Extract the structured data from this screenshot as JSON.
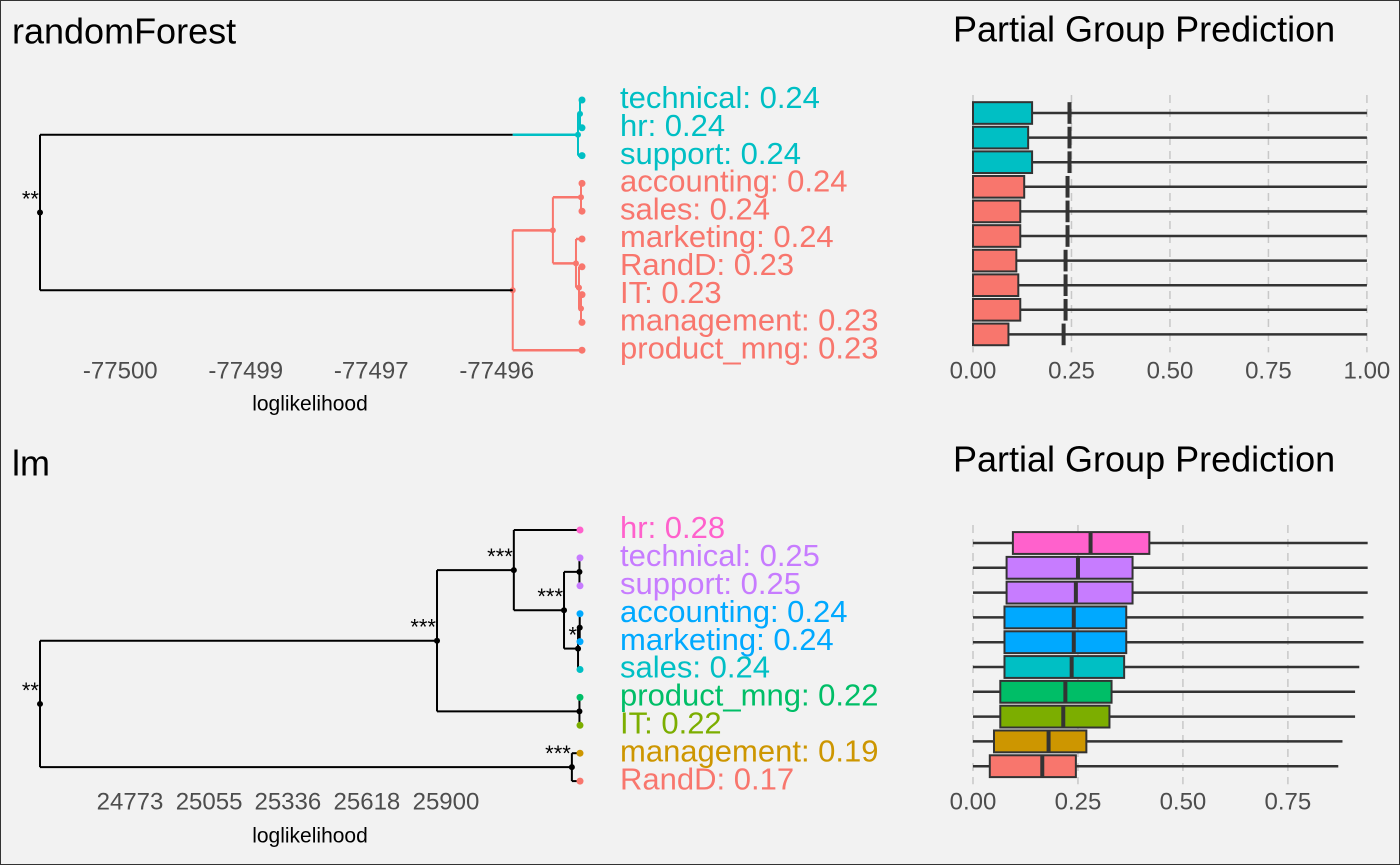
{
  "chart_data": [
    {
      "type": "dendrogram",
      "title": "randomForest",
      "x_label": "loglikelihood",
      "xlim": [
        -77500.7,
        -77495.3
      ],
      "xticks": [
        {
          "value": -77499.9,
          "label": "-77500"
        },
        {
          "value": -77498.65,
          "label": "-77499"
        },
        {
          "value": -77497.4,
          "label": "-77497"
        },
        {
          "value": -77496.15,
          "label": "-77496"
        }
      ],
      "leaf_height": -77495.3,
      "cut": -77495.99,
      "leaves": [
        {
          "label": "technical: 0.24",
          "color": "#00bfc4"
        },
        {
          "label": "hr: 0.24",
          "color": "#00bfc4"
        },
        {
          "label": "support: 0.24",
          "color": "#00bfc4"
        },
        {
          "label": "accounting: 0.24",
          "color": "#f8766d"
        },
        {
          "label": "sales: 0.24",
          "color": "#f8766d"
        },
        {
          "label": "marketing: 0.24",
          "color": "#f8766d"
        },
        {
          "label": "RandD: 0.23",
          "color": "#f8766d"
        },
        {
          "label": "IT: 0.23",
          "color": "#f8766d"
        },
        {
          "label": "management: 0.23",
          "color": "#f8766d"
        },
        {
          "label": "product_mng: 0.23",
          "color": "#f8766d"
        }
      ],
      "nodes": [
        {
          "children": [
            0,
            1
          ],
          "height": -77495.32
        },
        {
          "children": [
            10,
            2
          ],
          "height": -77495.34
        },
        {
          "children": [
            3,
            4
          ],
          "height": -77495.31
        },
        {
          "children": [
            7,
            8
          ],
          "height": -77495.31
        },
        {
          "children": [
            6,
            13
          ],
          "height": -77495.33
        },
        {
          "children": [
            5,
            14
          ],
          "height": -77495.36
        },
        {
          "children": [
            12,
            15
          ],
          "height": -77495.59
        },
        {
          "children": [
            16,
            9
          ],
          "height": -77495.99
        },
        {
          "children": [
            11,
            17
          ],
          "height": -77500.7,
          "label": "**"
        }
      ]
    },
    {
      "type": "box",
      "title": "Partial Group Prediction",
      "xlim": [
        0,
        1.084
      ],
      "xticks": [
        {
          "value": 0,
          "label": "0.00"
        },
        {
          "value": 0.25,
          "label": "0.25"
        },
        {
          "value": 0.5,
          "label": "0.50"
        },
        {
          "value": 0.75,
          "label": "0.75"
        },
        {
          "value": 1,
          "label": "1.00"
        }
      ],
      "grid": true,
      "colors": [
        "#00bfc4",
        "#00bfc4",
        "#00bfc4",
        "#f8766d",
        "#f8766d",
        "#f8766d",
        "#f8766d",
        "#f8766d",
        "#f8766d",
        "#f8766d"
      ],
      "min": [
        0,
        0,
        0,
        0,
        0,
        0,
        0,
        0,
        0,
        0
      ],
      "q1": [
        0,
        0,
        0,
        0,
        0,
        0,
        0,
        0,
        0,
        0
      ],
      "median": [
        0.245,
        0.245,
        0.245,
        0.24,
        0.24,
        0.24,
        0.235,
        0.235,
        0.235,
        0.23
      ],
      "q3": [
        0.15,
        0.14,
        0.15,
        0.13,
        0.12,
        0.12,
        0.11,
        0.115,
        0.12,
        0.09
      ],
      "max": [
        1,
        1,
        1,
        1,
        1,
        1,
        1,
        1,
        1,
        1
      ]
    },
    {
      "type": "dendrogram",
      "title": "lm",
      "x_label": "loglikelihood",
      "xlim": [
        24452,
        26378
      ],
      "xticks": [
        24773,
        25055,
        25336,
        25618,
        25900
      ],
      "leaf_height": 26378,
      "leaves": [
        {
          "label": "hr: 0.28",
          "color": "#ff61cc"
        },
        {
          "label": "technical: 0.25",
          "color": "#c77cff"
        },
        {
          "label": "support: 0.25",
          "color": "#c77cff"
        },
        {
          "label": "accounting: 0.24",
          "color": "#00a9ff"
        },
        {
          "label": "marketing: 0.24",
          "color": "#00a9ff"
        },
        {
          "label": "sales: 0.24",
          "color": "#00bfc4"
        },
        {
          "label": "product_mng: 0.22",
          "color": "#00be67"
        },
        {
          "label": "IT: 0.22",
          "color": "#7cae00"
        },
        {
          "label": "management: 0.19",
          "color": "#cd9600"
        },
        {
          "label": "RandD: 0.17",
          "color": "#f8766d"
        }
      ],
      "nodes": [
        {
          "children": [
            1,
            2
          ],
          "height": 26376
        },
        {
          "children": [
            3,
            4
          ],
          "height": 26377
        },
        {
          "children": [
            11,
            5
          ],
          "height": 26371,
          "label": "*"
        },
        {
          "children": [
            10,
            12
          ],
          "height": 26321,
          "label": "***"
        },
        {
          "children": [
            0,
            13
          ],
          "height": 26142,
          "label": "***"
        },
        {
          "children": [
            6,
            7
          ],
          "height": 26376
        },
        {
          "children": [
            14,
            15
          ],
          "height": 25868,
          "label": "***"
        },
        {
          "children": [
            8,
            9
          ],
          "height": 26349,
          "label": "***"
        },
        {
          "children": [
            16,
            17
          ],
          "height": 24452,
          "label": "**"
        }
      ]
    },
    {
      "type": "box",
      "title": "Partial Group Prediction",
      "xlim": [
        0,
        1.017
      ],
      "xticks": [
        {
          "value": 0,
          "label": "0.00"
        },
        {
          "value": 0.25,
          "label": "0.25"
        },
        {
          "value": 0.5,
          "label": "0.50"
        },
        {
          "value": 0.75,
          "label": "0.75"
        }
      ],
      "grid": true,
      "colors": [
        "#ff61cc",
        "#c77cff",
        "#c77cff",
        "#00a9ff",
        "#00a9ff",
        "#00bfc4",
        "#00be67",
        "#7cae00",
        "#cd9600",
        "#f8766d"
      ],
      "min": [
        0,
        0,
        0,
        0,
        0,
        0,
        0,
        0,
        0,
        0
      ],
      "q1": [
        0.095,
        0.08,
        0.08,
        0.075,
        0.075,
        0.075,
        0.065,
        0.065,
        0.05,
        0.04
      ],
      "median": [
        0.28,
        0.25,
        0.245,
        0.24,
        0.24,
        0.235,
        0.22,
        0.215,
        0.18,
        0.165
      ],
      "q3": [
        0.42,
        0.38,
        0.38,
        0.365,
        0.365,
        0.36,
        0.33,
        0.325,
        0.27,
        0.245
      ],
      "max": [
        0.94,
        0.94,
        0.94,
        0.93,
        0.93,
        0.92,
        0.91,
        0.91,
        0.88,
        0.87
      ]
    }
  ]
}
